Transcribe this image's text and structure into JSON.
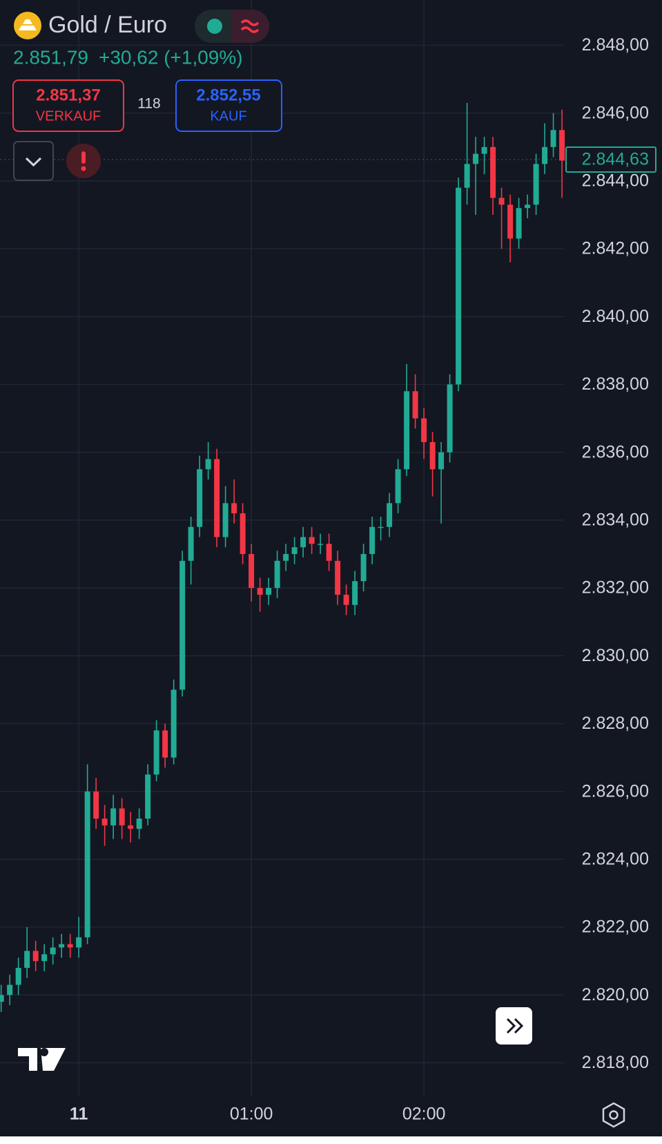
{
  "header": {
    "title": "Gold / Euro",
    "price": "2.851,79",
    "change": "+30,62 (+1,09%)",
    "sell": {
      "price": "2.851,37",
      "label": "VERKAUF"
    },
    "spread": "118",
    "buy": {
      "price": "2.852,55",
      "label": "KAUF"
    }
  },
  "chart_data": {
    "type": "candlestick",
    "up_color": "#22ab94",
    "down_color": "#f23645",
    "grid": true,
    "last_price": {
      "value": 2844.63,
      "label": "2.844,63"
    },
    "xlim": [
      -27.4,
      168.7
    ],
    "xticks": [
      {
        "value": 0,
        "label": "11"
      },
      {
        "value": 60,
        "label": "01:00"
      },
      {
        "value": 120,
        "label": "02:00"
      }
    ],
    "ylim": [
      2817,
      2849
    ],
    "yticks": [
      {
        "value": 2818,
        "label": "2.818,00"
      },
      {
        "value": 2820,
        "label": "2.820,00"
      },
      {
        "value": 2822,
        "label": "2.822,00"
      },
      {
        "value": 2824,
        "label": "2.824,00"
      },
      {
        "value": 2826,
        "label": "2.826,00"
      },
      {
        "value": 2828,
        "label": "2.828,00"
      },
      {
        "value": 2830,
        "label": "2.830,00"
      },
      {
        "value": 2832,
        "label": "2.832,00"
      },
      {
        "value": 2834,
        "label": "2.834,00"
      },
      {
        "value": 2836,
        "label": "2.836,00"
      },
      {
        "value": 2838,
        "label": "2.838,00"
      },
      {
        "value": 2840,
        "label": "2.840,00"
      },
      {
        "value": 2842,
        "label": "2.842,00"
      },
      {
        "value": 2844,
        "label": "2.844,00"
      },
      {
        "value": 2846,
        "label": "2.846,00"
      },
      {
        "value": 2848,
        "label": "2.848,00"
      }
    ],
    "x": [
      -27,
      -24,
      -21,
      -18,
      -15,
      -12,
      -9,
      -6,
      -3,
      0,
      3,
      6,
      9,
      12,
      15,
      18,
      21,
      24,
      27,
      30,
      33,
      36,
      39,
      42,
      45,
      48,
      51,
      54,
      57,
      60,
      63,
      66,
      69,
      72,
      75,
      78,
      81,
      84,
      87,
      90,
      93,
      96,
      99,
      102,
      105,
      108,
      111,
      114,
      117,
      120,
      123,
      126,
      129,
      132,
      135,
      138,
      141,
      144,
      147,
      150,
      153,
      156,
      159,
      162,
      165,
      168
    ],
    "open": [
      2819.8,
      2820.0,
      2820.3,
      2820.8,
      2821.3,
      2821.0,
      2821.2,
      2821.4,
      2821.5,
      2821.4,
      2821.7,
      2826.0,
      2825.2,
      2825.0,
      2825.5,
      2825.0,
      2824.9,
      2825.2,
      2826.5,
      2827.8,
      2827.0,
      2829.0,
      2832.8,
      2833.8,
      2835.5,
      2835.8,
      2833.5,
      2834.5,
      2834.2,
      2833.0,
      2832.0,
      2831.8,
      2832.0,
      2832.8,
      2833.0,
      2833.2,
      2833.5,
      2833.3,
      2833.3,
      2832.8,
      2831.8,
      2831.5,
      2832.2,
      2833.0,
      2833.8,
      2833.8,
      2834.5,
      2835.5,
      2837.8,
      2837.0,
      2836.3,
      2835.5,
      2836.0,
      2838.0,
      2843.8,
      2844.5,
      2844.8,
      2845.0,
      2843.5,
      2843.3,
      2842.3,
      2843.2,
      2843.3,
      2844.5,
      2845.0,
      2845.5
    ],
    "high": [
      2820.3,
      2820.6,
      2821.1,
      2822.0,
      2821.6,
      2821.5,
      2821.7,
      2821.8,
      2821.8,
      2822.3,
      2826.8,
      2826.4,
      2825.6,
      2825.9,
      2825.8,
      2825.4,
      2825.5,
      2826.8,
      2828.1,
      2828.0,
      2829.3,
      2833.1,
      2834.1,
      2835.9,
      2836.3,
      2836.1,
      2835.0,
      2835.2,
      2834.5,
      2833.3,
      2832.3,
      2832.3,
      2833.1,
      2833.3,
      2833.5,
      2833.8,
      2833.8,
      2833.6,
      2833.6,
      2833.1,
      2832.1,
      2832.5,
      2833.3,
      2834.1,
      2834.1,
      2834.8,
      2835.8,
      2838.6,
      2838.3,
      2837.3,
      2836.6,
      2836.3,
      2838.3,
      2844.1,
      2846.3,
      2845.3,
      2845.3,
      2845.3,
      2843.8,
      2843.6,
      2843.5,
      2843.6,
      2844.8,
      2845.7,
      2846.0,
      2846.1
    ],
    "low": [
      2819.5,
      2819.7,
      2820.0,
      2820.5,
      2820.7,
      2820.7,
      2820.9,
      2821.1,
      2821.1,
      2821.1,
      2821.5,
      2824.9,
      2824.4,
      2824.6,
      2824.6,
      2824.5,
      2824.6,
      2825.0,
      2826.3,
      2826.7,
      2826.8,
      2828.8,
      2832.1,
      2833.5,
      2835.2,
      2833.2,
      2833.2,
      2833.9,
      2832.7,
      2831.6,
      2831.3,
      2831.5,
      2831.7,
      2832.5,
      2832.7,
      2832.9,
      2833.0,
      2833.0,
      2832.5,
      2831.5,
      2831.2,
      2831.2,
      2831.9,
      2832.7,
      2833.4,
      2833.5,
      2834.2,
      2835.3,
      2836.7,
      2835.8,
      2834.7,
      2833.9,
      2835.7,
      2837.8,
      2843.3,
      2843.0,
      2844.2,
      2843.0,
      2842.0,
      2841.6,
      2842.0,
      2842.9,
      2843.0,
      2844.2,
      2844.7,
      2843.5
    ],
    "close": [
      2820.0,
      2820.3,
      2820.8,
      2821.3,
      2821.0,
      2821.2,
      2821.4,
      2821.5,
      2821.4,
      2821.7,
      2826.0,
      2825.2,
      2825.0,
      2825.5,
      2825.0,
      2824.9,
      2825.2,
      2826.5,
      2827.8,
      2827.0,
      2829.0,
      2832.8,
      2833.8,
      2835.5,
      2835.8,
      2833.5,
      2834.5,
      2834.2,
      2833.0,
      2832.0,
      2831.8,
      2832.0,
      2832.8,
      2833.0,
      2833.2,
      2833.5,
      2833.3,
      2833.3,
      2832.8,
      2831.8,
      2831.5,
      2832.2,
      2833.0,
      2833.8,
      2833.8,
      2834.5,
      2835.5,
      2837.8,
      2837.0,
      2836.3,
      2835.5,
      2836.0,
      2838.0,
      2843.8,
      2844.5,
      2844.8,
      2845.0,
      2843.5,
      2843.3,
      2842.3,
      2843.2,
      2843.3,
      2844.5,
      2845.0,
      2845.5,
      2844.6
    ]
  }
}
